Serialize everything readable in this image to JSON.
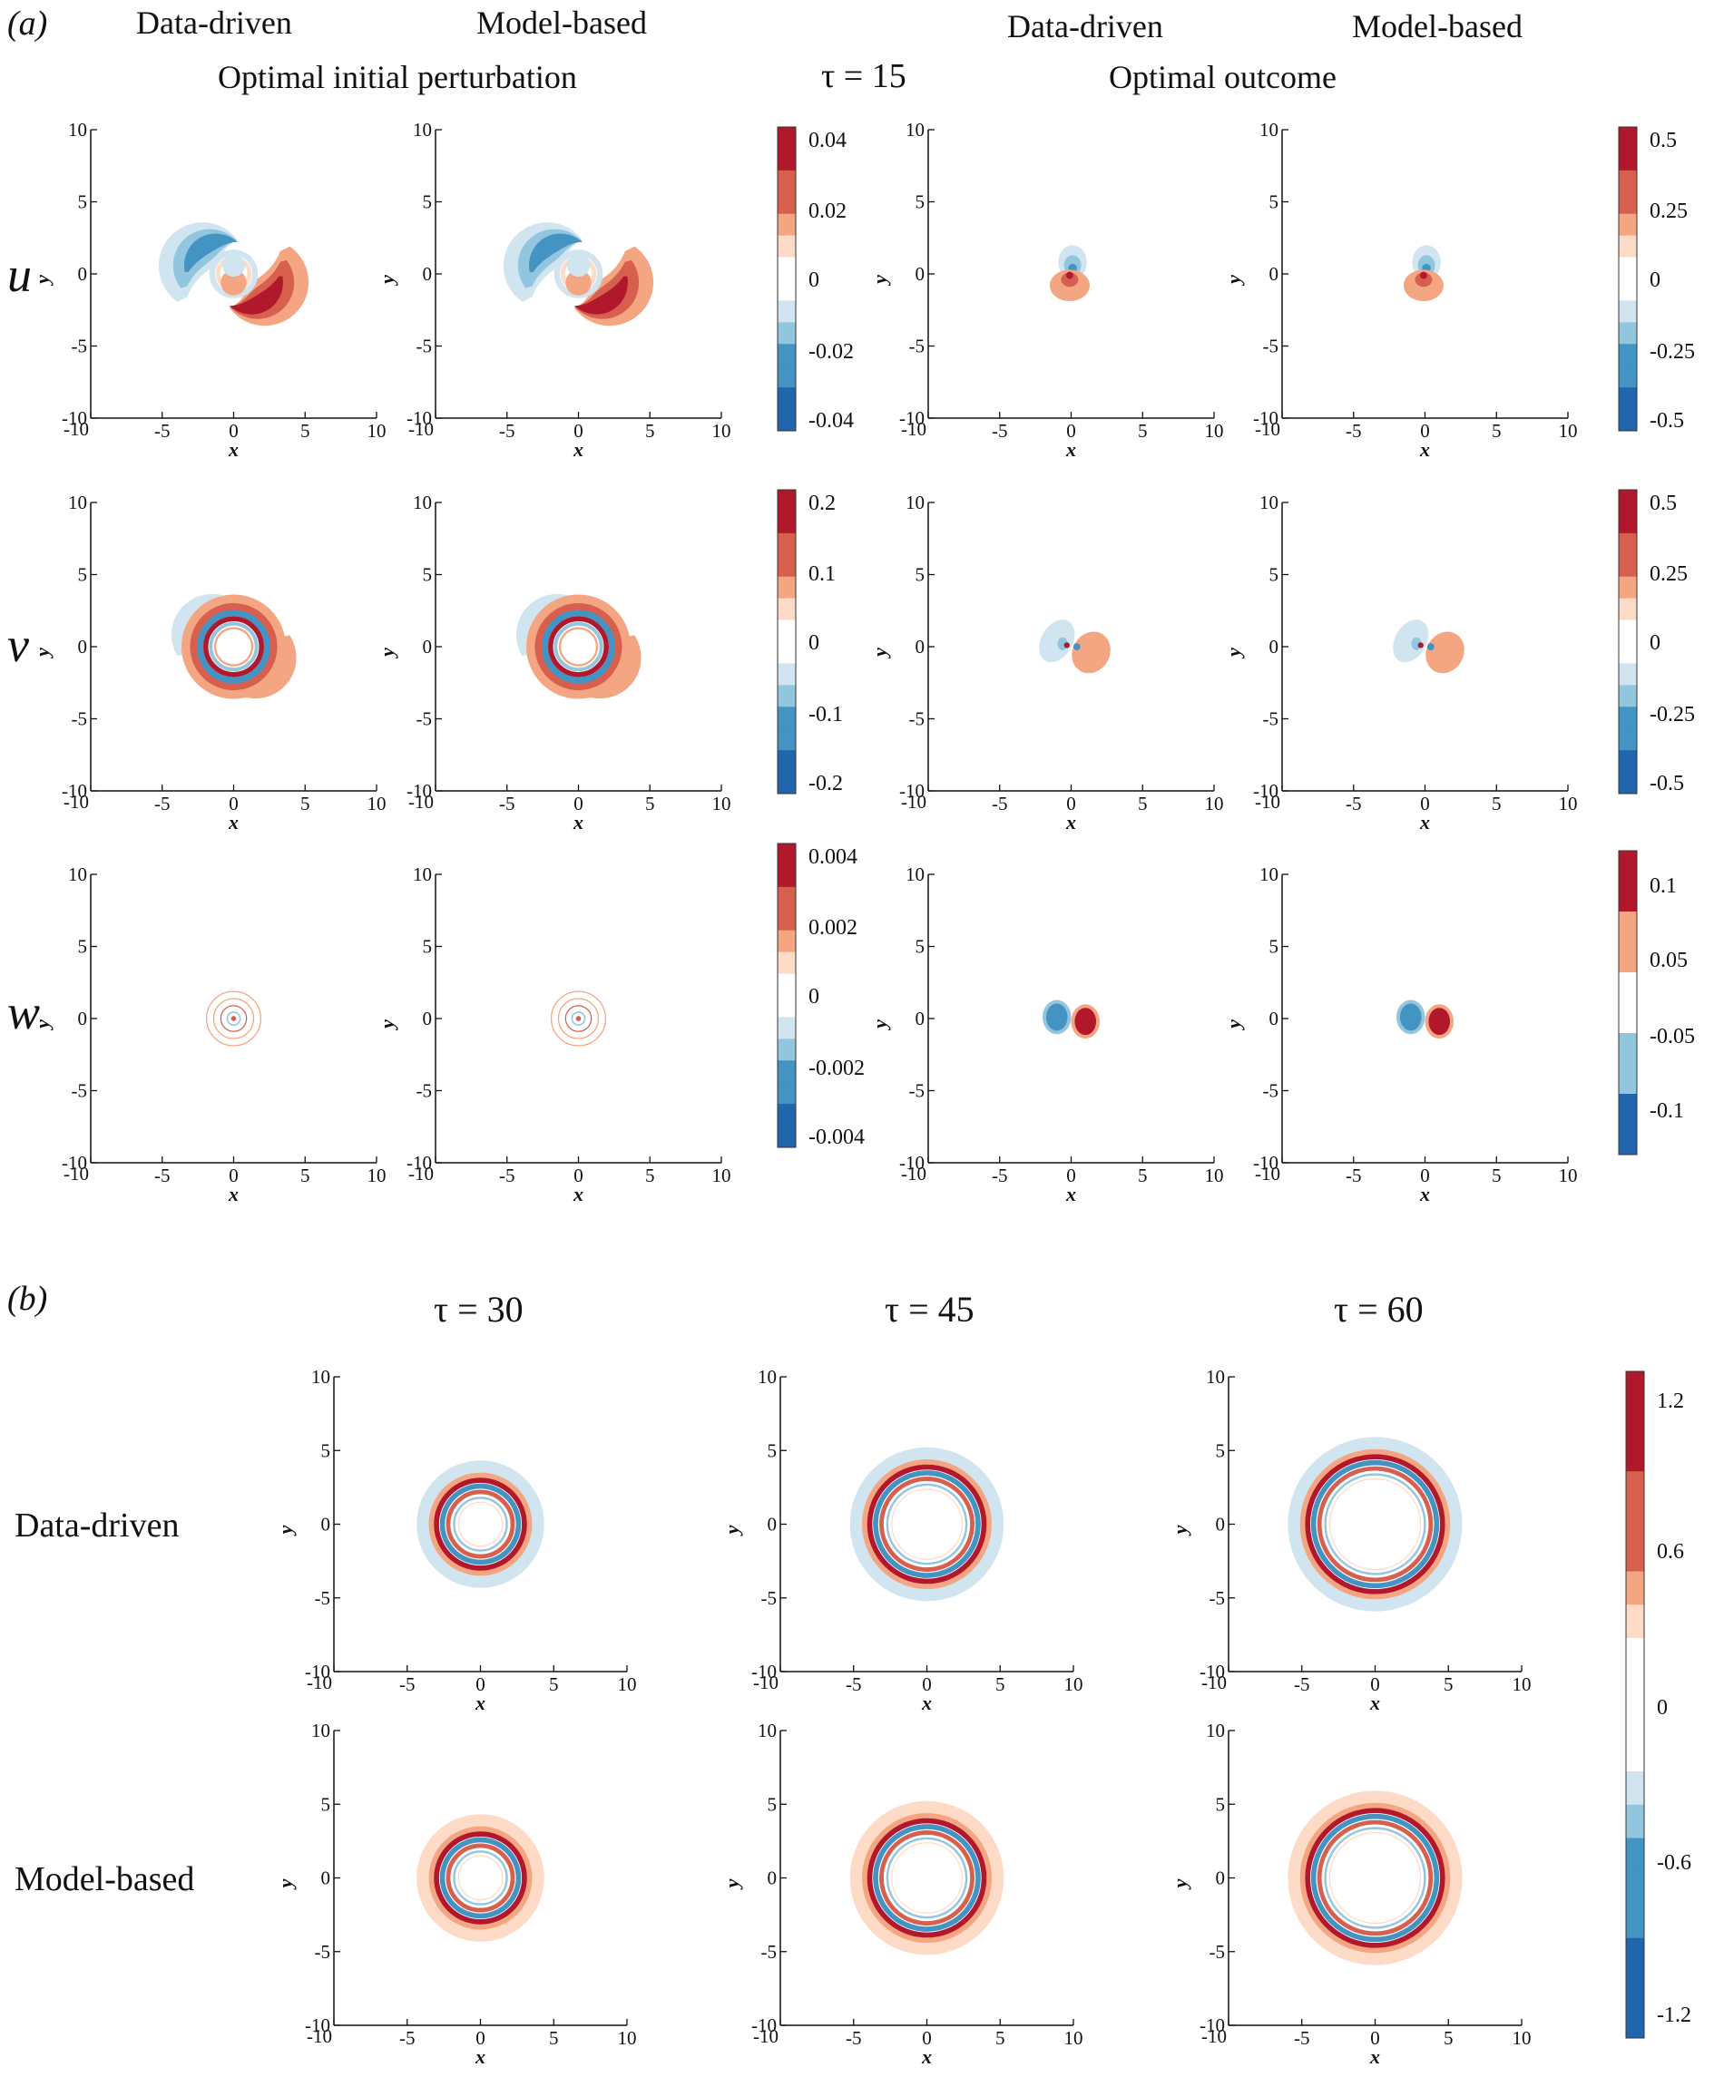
{
  "panel_labels": {
    "a": "(a)",
    "b": "(b)"
  },
  "headers": {
    "col1": "Data-driven",
    "col2": "Model-based",
    "col3": "Data-driven",
    "col4": "Model-based",
    "sub_left": "Optimal initial perturbation",
    "sub_tau": "τ = 15",
    "sub_right": "Optimal outcome",
    "tau30": "τ = 30",
    "tau45": "τ = 45",
    "tau60": "τ = 60"
  },
  "row_labels": {
    "u": "u",
    "v": "v",
    "w": "w",
    "data_driven": "Data-driven",
    "model_based": "Model-based"
  },
  "axes": {
    "xlabel": "x",
    "ylabel": "y",
    "xticks": [
      "-10",
      "-5",
      "0",
      "5",
      "10"
    ],
    "yticks": [
      "10",
      "5",
      "0",
      "-5",
      "-10"
    ]
  },
  "colorbars": {
    "cb_u_left": [
      "0.04",
      "0.02",
      "0",
      "-0.02",
      "-0.04"
    ],
    "cb_u_right": [
      "0.5",
      "0.25",
      "0",
      "-0.25",
      "-0.5"
    ],
    "cb_v_left": [
      "0.2",
      "0.1",
      "0",
      "-0.1",
      "-0.2"
    ],
    "cb_v_right": [
      "0.5",
      "0.25",
      "0",
      "-0.25",
      "-0.5"
    ],
    "cb_w_left": [
      "0.004",
      "0.002",
      "0",
      "-0.002",
      "-0.004"
    ],
    "cb_w_right": [
      "0.1",
      "0.05",
      "-0.05",
      "-0.1"
    ],
    "cb_b": [
      "1.2",
      "0.6",
      "0",
      "-0.6",
      "-1.2"
    ]
  },
  "colors": {
    "red_dark": "#b2182b",
    "red": "#d6604d",
    "red_light": "#f4a582",
    "red_pale": "#fddbc7",
    "blue_pale": "#d1e5f0",
    "blue_light": "#92c5de",
    "blue": "#4393c3",
    "blue_dark": "#2166ac"
  },
  "chart_data": [
    {
      "type": "heatmap",
      "title": "u, optimal initial perturbation (Data-driven / Model-based), τ = 15",
      "xlabel": "x",
      "ylabel": "y",
      "xlim": [
        -10,
        10
      ],
      "ylim": [
        -10,
        10
      ],
      "colorbar_range": [
        -0.04,
        0.04
      ]
    },
    {
      "type": "heatmap",
      "title": "u, optimal outcome (Data-driven / Model-based), τ = 15",
      "xlabel": "x",
      "ylabel": "y",
      "xlim": [
        -10,
        10
      ],
      "ylim": [
        -10,
        10
      ],
      "colorbar_range": [
        -0.5,
        0.5
      ]
    },
    {
      "type": "heatmap",
      "title": "v, optimal initial perturbation",
      "xlabel": "x",
      "ylabel": "y",
      "xlim": [
        -10,
        10
      ],
      "ylim": [
        -10,
        10
      ],
      "colorbar_range": [
        -0.2,
        0.2
      ]
    },
    {
      "type": "heatmap",
      "title": "v, optimal outcome",
      "xlabel": "x",
      "ylabel": "y",
      "xlim": [
        -10,
        10
      ],
      "ylim": [
        -10,
        10
      ],
      "colorbar_range": [
        -0.5,
        0.5
      ]
    },
    {
      "type": "heatmap",
      "title": "w, optimal initial perturbation",
      "xlabel": "x",
      "ylabel": "y",
      "xlim": [
        -10,
        10
      ],
      "ylim": [
        -10,
        10
      ],
      "colorbar_range": [
        -0.004,
        0.004
      ]
    },
    {
      "type": "heatmap",
      "title": "w, optimal outcome",
      "xlabel": "x",
      "ylabel": "y",
      "xlim": [
        -10,
        10
      ],
      "ylim": [
        -10,
        10
      ],
      "colorbar_range": [
        -0.1,
        0.1
      ]
    },
    {
      "type": "heatmap",
      "title": "(b) τ = 30, 45, 60 (Data-driven / Model-based)",
      "xlabel": "x",
      "ylabel": "y",
      "xlim": [
        -10,
        10
      ],
      "ylim": [
        -10,
        10
      ],
      "colorbar_range": [
        -1.2,
        1.2
      ]
    }
  ]
}
